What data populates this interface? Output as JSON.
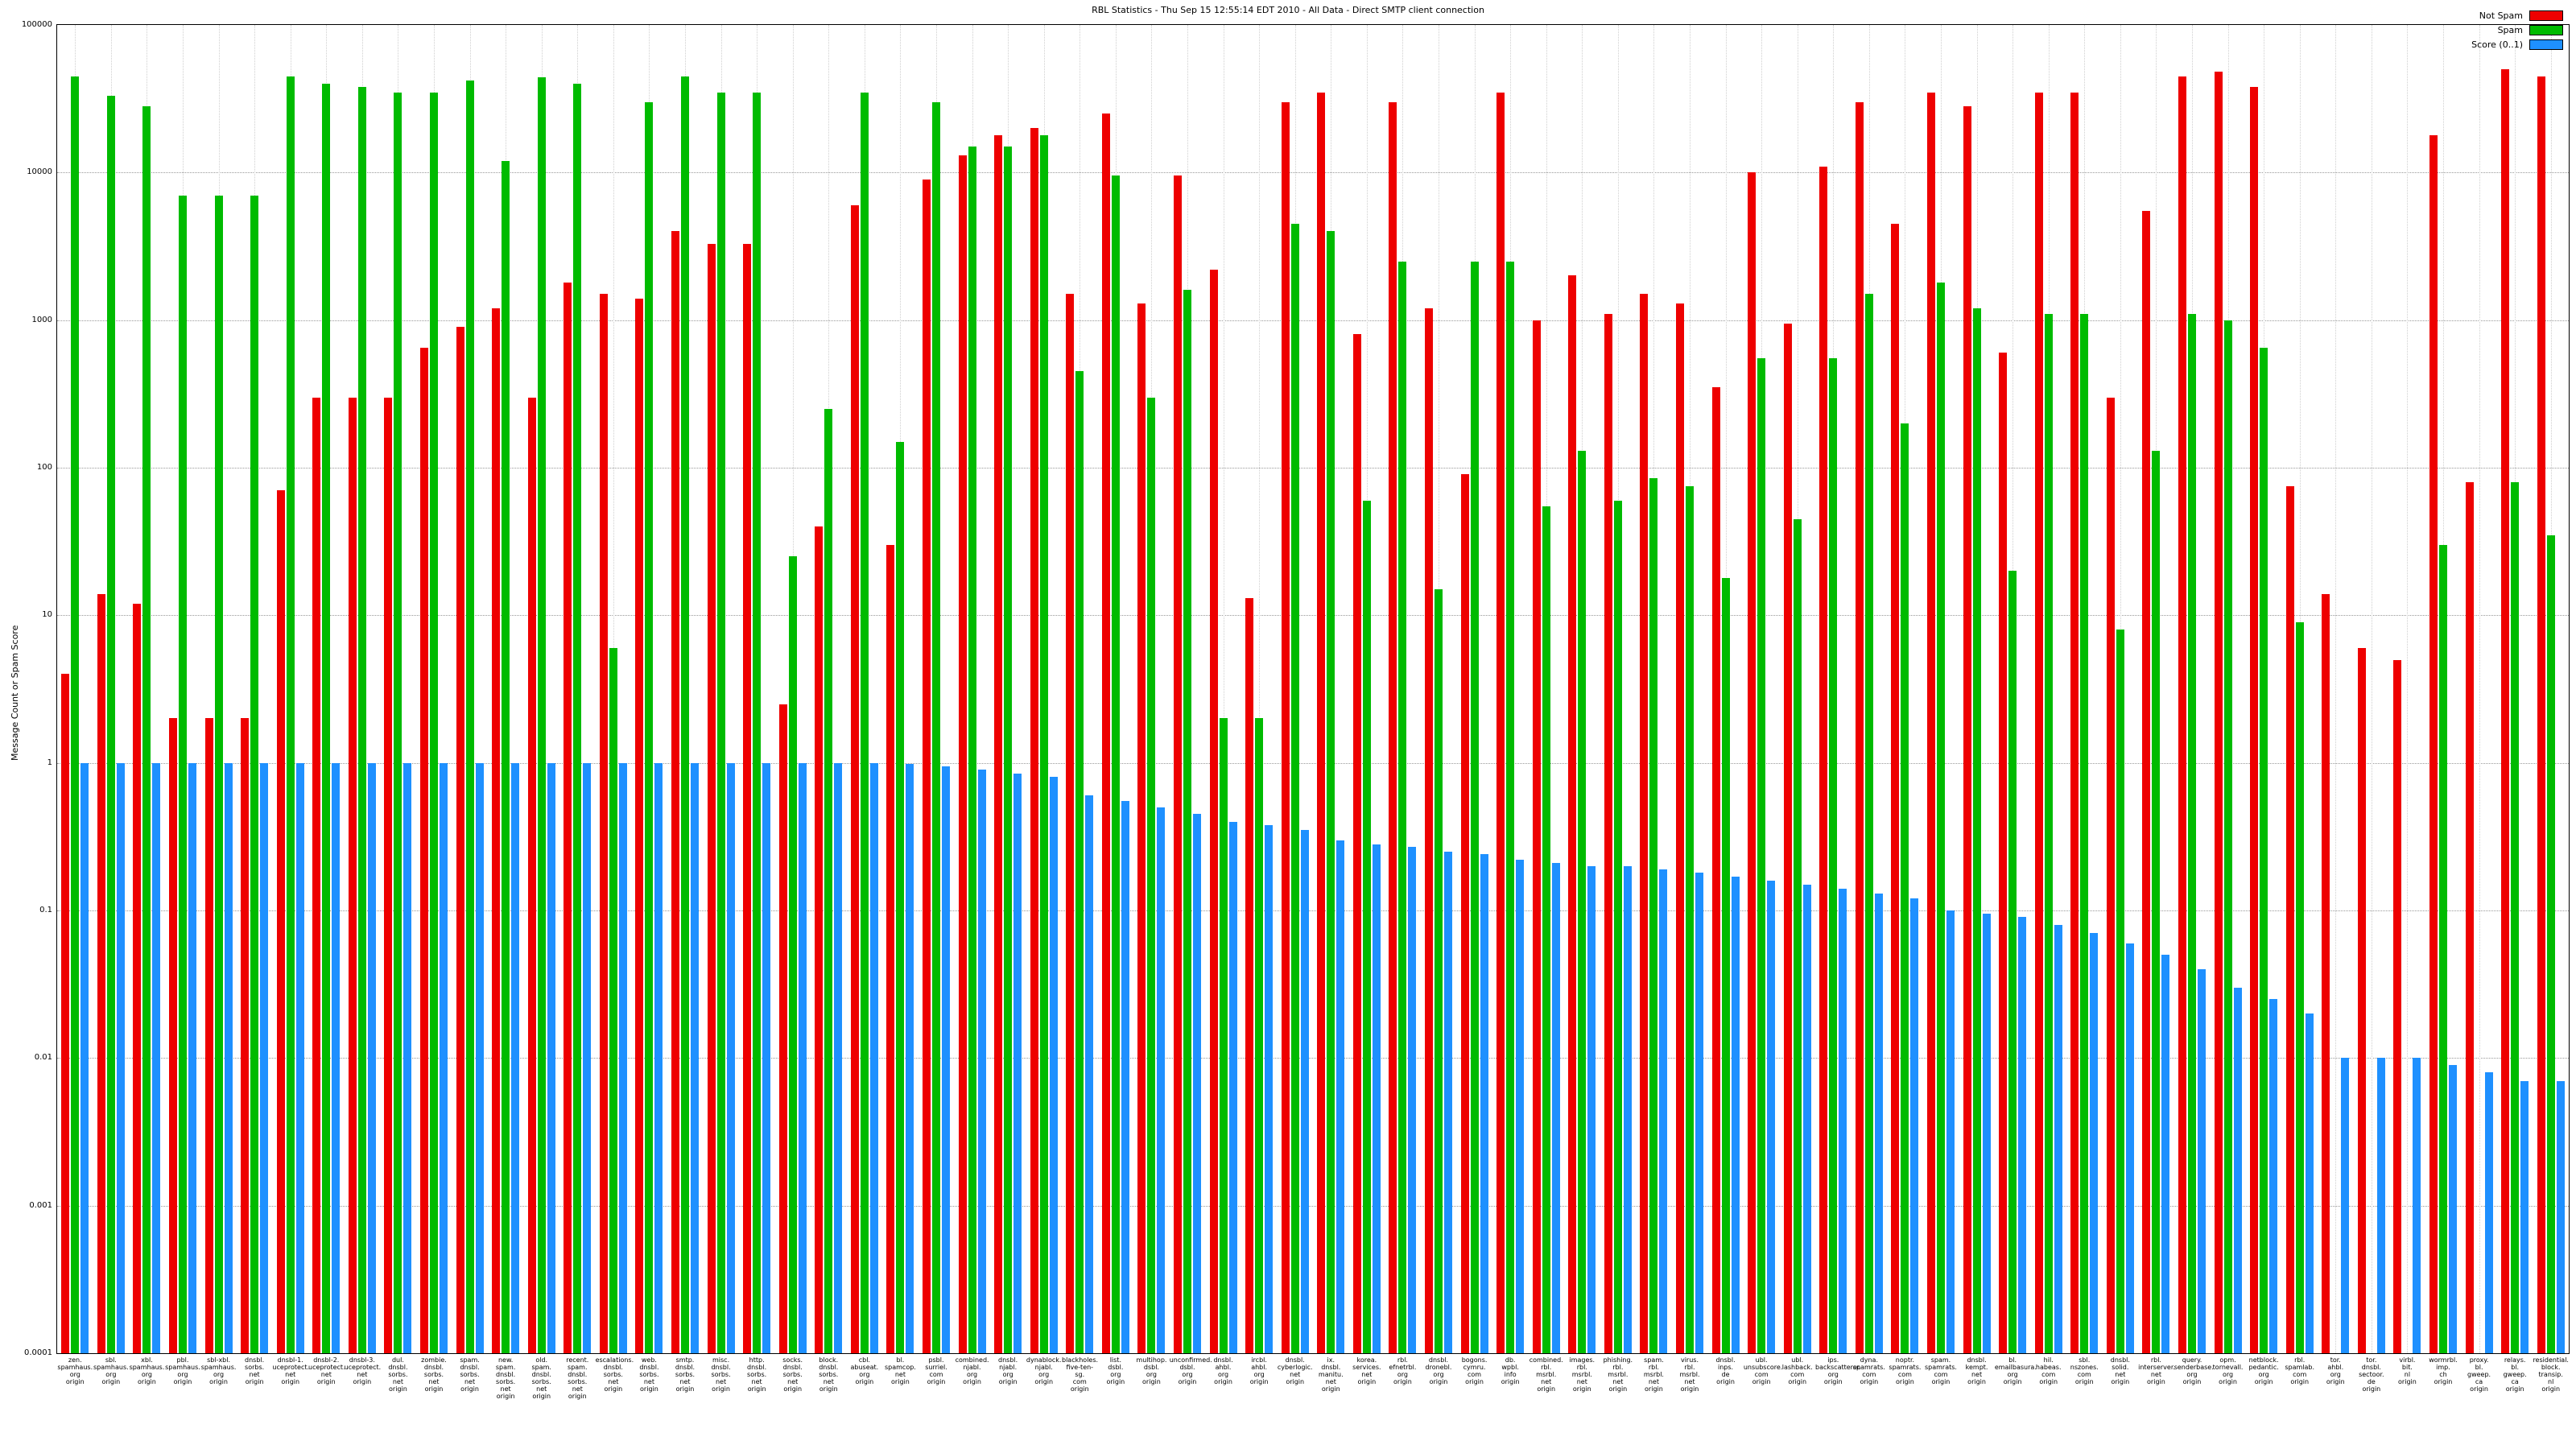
{
  "chart_data": {
    "type": "bar",
    "scale": "log",
    "title": "RBL Statistics - Thu Sep 15 12:55:14 EDT 2010 - All Data - Direct SMTP client connection",
    "ylabel": "Message Count or Spam Score",
    "ylim": [
      0.0001,
      100000
    ],
    "ytick_labels": [
      "100000",
      "10000",
      "1000",
      "100",
      "10",
      "1",
      "0.1",
      "0.01",
      "0.001",
      "0.0001"
    ],
    "xlabel_suffix": "origin",
    "legend_position": "top-right",
    "grid": true,
    "categories": [
      "zen.spamhaus.org",
      "sbl.spamhaus.org",
      "xbl.spamhaus.org",
      "pbl.spamhaus.org",
      "sbl-xbl.spamhaus.org",
      "dnsbl.sorbs.net",
      "dnsbl-1.uceprotect.net",
      "dnsbl-2.uceprotect.net",
      "dnsbl-3.uceprotect.net",
      "dul.dnsbl.sorbs.net",
      "zombie.dnsbl.sorbs.net",
      "spam.dnsbl.sorbs.net",
      "new.spam.dnsbl.sorbs.net",
      "old.spam.dnsbl.sorbs.net",
      "recent.spam.dnsbl.sorbs.net",
      "escalations.dnsbl.sorbs.net",
      "web.dnsbl.sorbs.net",
      "smtp.dnsbl.sorbs.net",
      "misc.dnsbl.sorbs.net",
      "http.dnsbl.sorbs.net",
      "socks.dnsbl.sorbs.net",
      "block.dnsbl.sorbs.net",
      "cbl.abuseat.org",
      "bl.spamcop.net",
      "psbl.surriel.com",
      "combined.njabl.org",
      "dnsbl.njabl.org",
      "dynablock.njabl.org",
      "blackholes.five-ten-sg.com",
      "list.dsbl.org",
      "multihop.dsbl.org",
      "unconfirmed.dsbl.org",
      "dnsbl.ahbl.org",
      "ircbl.ahbl.org",
      "dnsbl.cyberlogic.net",
      "ix.dnsbl.manitu.net",
      "korea.services.net",
      "rbl.efnetrbl.org",
      "dnsbl.dronebl.org",
      "bogons.cymru.com",
      "db.wpbl.info",
      "combined.rbl.msrbl.net",
      "images.rbl.msrbl.net",
      "phishing.rbl.msrbl.net",
      "spam.rbl.msrbl.net",
      "virus.rbl.msrbl.net",
      "dnsbl.inps.de",
      "ubl.unsubscore.com",
      "ubl.lashback.com",
      "ips.backscatterer.org",
      "dyna.spamrats.com",
      "noptr.spamrats.com",
      "spam.spamrats.com",
      "dnsbl.kempt.net",
      "bl.emailbasura.org",
      "hil.habeas.com",
      "sbl.nszones.com",
      "dnsbl.solid.net",
      "rbl.interserver.net",
      "query.senderbase.org",
      "opm.tornevall.org",
      "netblock.pedantic.org",
      "rbl.spamlab.com",
      "tor.ahbl.org",
      "tor.dnsbl.sectoor.de",
      "virbl.bit.nl",
      "wormrbl.imp.ch",
      "proxy.bl.gweep.ca",
      "relays.bl.gweep.ca",
      "residential.block.transip.nl"
    ],
    "series": [
      {
        "name": "Not Spam",
        "color": "#ee0000",
        "values": [
          4,
          14,
          12,
          2,
          2,
          2,
          70,
          300,
          300,
          300,
          650,
          900,
          1200,
          300,
          1800,
          1500,
          1400,
          4000,
          3300,
          3300,
          2.5,
          40,
          6000,
          30,
          9000,
          13000,
          18000,
          20000,
          1500,
          25000,
          1300,
          9500,
          2200,
          13,
          30000,
          35000,
          800,
          30000,
          1200,
          90,
          35000,
          1000,
          2000,
          1100,
          1500,
          1300,
          350,
          10000,
          950,
          11000,
          30000,
          4500,
          35000,
          28000,
          600,
          35000,
          35000,
          300,
          5500,
          45000,
          48000,
          38000,
          75,
          14,
          6,
          5,
          18000,
          80,
          50000,
          45000
        ]
      },
      {
        "name": "Spam",
        "color": "#00bb00",
        "values": [
          45000,
          33000,
          28000,
          7000,
          7000,
          7000,
          45000,
          40000,
          38000,
          35000,
          35000,
          42000,
          12000,
          44000,
          40000,
          6,
          30000,
          45000,
          35000,
          35000,
          25,
          250,
          35000,
          150,
          30000,
          15000,
          15000,
          18000,
          450,
          9500,
          300,
          1600,
          2,
          2,
          4500,
          4000,
          60,
          2500,
          15,
          2500,
          2500,
          55,
          130,
          60,
          85,
          75,
          18,
          550,
          45,
          550,
          1500,
          200,
          1800,
          1200,
          20,
          1100,
          1100,
          8,
          130,
          1100,
          1000,
          650,
          9,
          0,
          0,
          0,
          30,
          0,
          80,
          35
        ]
      },
      {
        "name": "Score (0..1)",
        "color": "#1e90ff",
        "values": [
          1,
          1,
          1,
          1,
          1,
          1,
          1,
          1,
          1,
          1,
          1,
          1,
          1,
          1,
          1,
          1,
          1,
          1,
          1,
          1,
          1,
          1,
          1,
          0.98,
          0.95,
          0.9,
          0.85,
          0.8,
          0.6,
          0.55,
          0.5,
          0.45,
          0.4,
          0.38,
          0.35,
          0.3,
          0.28,
          0.27,
          0.25,
          0.24,
          0.22,
          0.21,
          0.2,
          0.2,
          0.19,
          0.18,
          0.17,
          0.16,
          0.15,
          0.14,
          0.13,
          0.12,
          0.1,
          0.095,
          0.09,
          0.08,
          0.07,
          0.06,
          0.05,
          0.04,
          0.03,
          0.025,
          0.02,
          0.01,
          0.01,
          0.01,
          0.009,
          0.008,
          0.007,
          0.007
        ]
      }
    ]
  }
}
